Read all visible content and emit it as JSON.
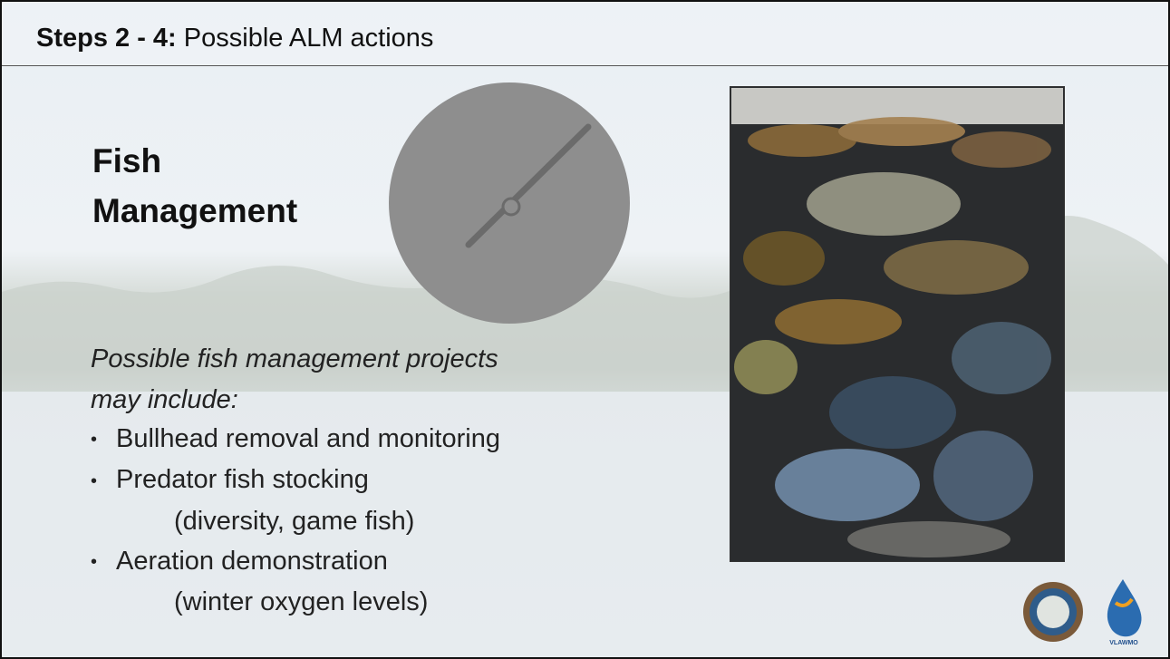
{
  "header": {
    "title_bold": "Steps 2 - 4:",
    "title_rest": "Possible ALM actions"
  },
  "heading": [
    "Fish",
    "Management"
  ],
  "intro": [
    "Possible fish management projects",
    "may include:"
  ],
  "bullets": [
    {
      "text": "Bullhead removal and monitoring",
      "detail": null
    },
    {
      "text": "Predator fish stocking",
      "detail": "(diversity, game fish)"
    },
    {
      "text": "Aeration demonstration",
      "detail": "(winter oxygen levels)"
    }
  ],
  "logos": {
    "right_caption": "VLAWMO"
  }
}
